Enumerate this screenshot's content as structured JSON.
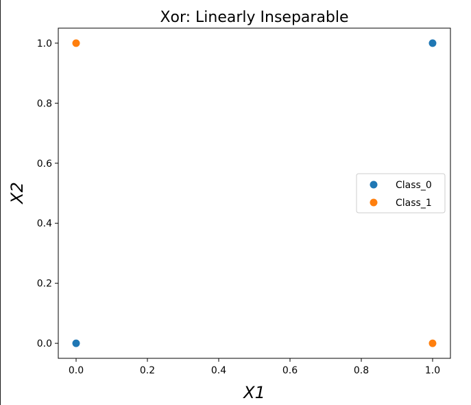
{
  "chart_data": {
    "type": "scatter",
    "title": "Xor: Linearly Inseparable",
    "xlabel": "X1",
    "ylabel": "X2",
    "xlim": [
      -0.05,
      1.05
    ],
    "ylim": [
      -0.05,
      1.05
    ],
    "xticks": [
      0.0,
      0.2,
      0.4,
      0.6,
      0.8,
      1.0
    ],
    "yticks": [
      0.0,
      0.2,
      0.4,
      0.6,
      0.8,
      1.0
    ],
    "xtick_labels": [
      "0.0",
      "0.2",
      "0.4",
      "0.6",
      "0.8",
      "1.0"
    ],
    "ytick_labels": [
      "0.0",
      "0.2",
      "0.4",
      "0.6",
      "0.8",
      "1.0"
    ],
    "grid": false,
    "legend_position": "center-right",
    "series": [
      {
        "name": "Class_0",
        "color": "#1f77b4",
        "points": [
          [
            0,
            0
          ],
          [
            1,
            1
          ]
        ]
      },
      {
        "name": "Class_1",
        "color": "#ff7f0e",
        "points": [
          [
            0,
            1
          ],
          [
            1,
            0
          ]
        ]
      }
    ]
  }
}
